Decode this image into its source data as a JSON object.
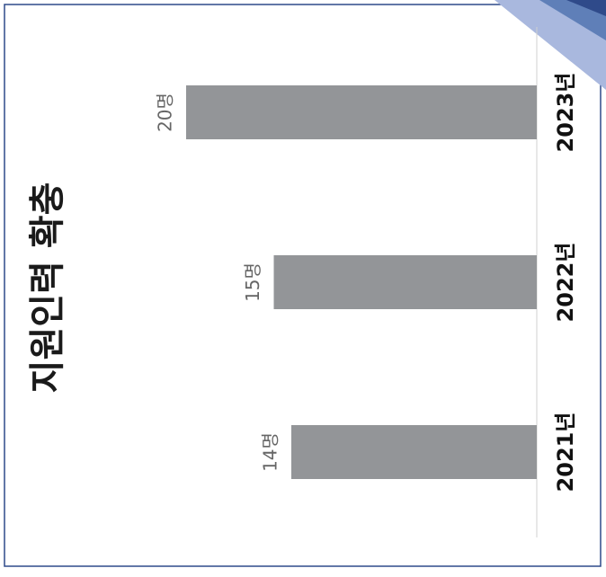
{
  "chart_data": {
    "type": "bar",
    "title": "지원인력 확충",
    "categories": [
      "2021년",
      "2022년",
      "2023년"
    ],
    "values": [
      14,
      15,
      20
    ],
    "value_labels": [
      "14명",
      "15명",
      "20명"
    ],
    "color": "#939598"
  }
}
